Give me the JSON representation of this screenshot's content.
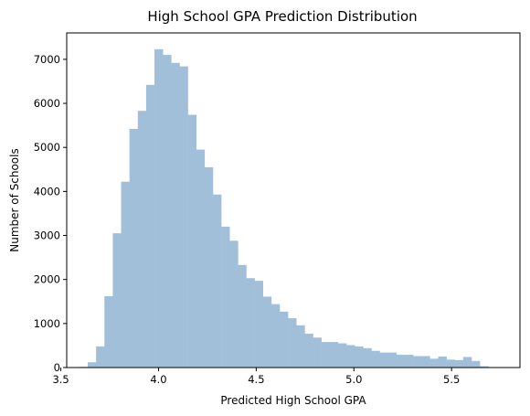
{
  "chart_data": {
    "type": "bar",
    "title": "High School GPA Prediction Distribution",
    "xlabel": "Predicted High School GPA",
    "ylabel": "Number of Schools",
    "xlim": [
      3.53,
      5.85
    ],
    "ylim": [
      0,
      7600
    ],
    "xticks": [
      3.5,
      4.0,
      4.5,
      5.0,
      5.5
    ],
    "xtick_labels": [
      "3.5",
      "4.0",
      "4.5",
      "5.0",
      "5.5"
    ],
    "yticks": [
      0,
      1000,
      2000,
      3000,
      4000,
      5000,
      6000,
      7000
    ],
    "ytick_labels": [
      "0",
      "1000",
      "2000",
      "3000",
      "4000",
      "5000",
      "6000",
      "7000"
    ],
    "bin_start": 3.595,
    "bin_width": 0.0427,
    "values": [
      15,
      120,
      480,
      1620,
      3050,
      4220,
      5420,
      5830,
      6420,
      7230,
      7100,
      6920,
      6840,
      5740,
      4950,
      4550,
      3930,
      3200,
      2880,
      2330,
      2030,
      1970,
      1610,
      1440,
      1270,
      1120,
      960,
      770,
      680,
      580,
      580,
      550,
      510,
      480,
      440,
      380,
      340,
      340,
      290,
      290,
      260,
      260,
      200,
      250,
      180,
      170,
      240,
      150,
      30
    ],
    "bar_color": "#a2bfd9",
    "grid": false,
    "legend": "none"
  }
}
